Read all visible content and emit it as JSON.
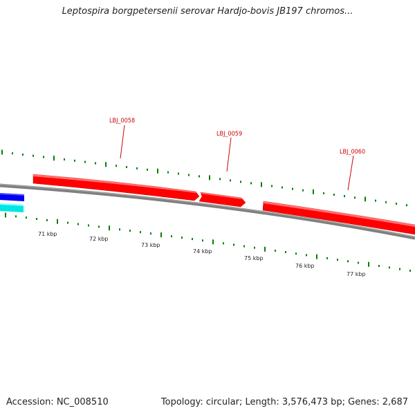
{
  "header": {
    "title": "Leptospira borgpetersenii serovar Hardjo-bovis JB197 chromos..."
  },
  "footer": {
    "accession": "Accession: NC_008510",
    "summary": "Topology: circular; Length: 3,576,473 bp; Genes: 2,687"
  },
  "colors": {
    "backbone": "#7f7f7f",
    "forward_gene": "#ff0000",
    "reverse_gene_a": "#0000ee",
    "reverse_gene_b": "#00e5e5",
    "tick_marks": "#007f00",
    "gene_label": "#cc0000"
  },
  "scale_labels": [
    "71 kbp",
    "72 kbp",
    "73 kbp",
    "74 kbp",
    "75 kbp",
    "76 kbp",
    "77 kbp"
  ],
  "genes": [
    {
      "id": "LBJ_0058",
      "strand": "forward",
      "color_key": "forward_gene",
      "label": "LBJ_0058"
    },
    {
      "id": "LBJ_0059",
      "strand": "forward",
      "color_key": "forward_gene",
      "label": "LBJ_0059"
    },
    {
      "id": "LBJ_0060",
      "strand": "forward",
      "color_key": "forward_gene",
      "label": "LBJ_0060"
    },
    {
      "id": "reverse-gene-1",
      "strand": "reverse",
      "color_key": "reverse_gene_a"
    },
    {
      "id": "reverse-gene-2",
      "strand": "reverse",
      "color_key": "reverse_gene_b"
    }
  ]
}
